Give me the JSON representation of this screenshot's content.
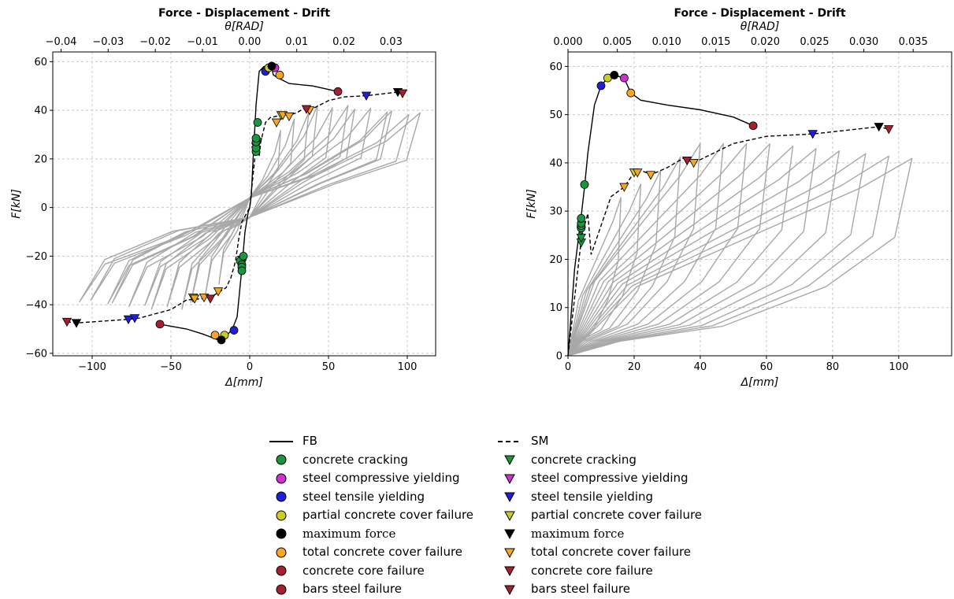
{
  "chart_data": [
    {
      "type": "line",
      "title": "Force - Displacement - Drift",
      "top_axis_label": "θ[RAD]",
      "xlabel": "Δ[mm]",
      "ylabel": "F[kN]",
      "xlim": [
        -125,
        118
      ],
      "ylim": [
        -61,
        64
      ],
      "top_axis_lim": [
        -0.04175,
        0.03946
      ],
      "xticks": [
        "−100",
        "−50",
        "0",
        "50",
        "100"
      ],
      "yticks": [
        "−60",
        "−40",
        "−20",
        "0",
        "20",
        "40",
        "60"
      ],
      "top_ticks": [
        "−0.04",
        "−0.03",
        "−0.02",
        "−0.01",
        "0.00",
        "0.01",
        "0.02",
        "0.03"
      ],
      "grid": true,
      "series": [
        {
          "name": "FB",
          "style": "solid",
          "color": "#000000",
          "x": [
            -57,
            -40,
            -30,
            -20,
            -15,
            -11,
            -8,
            -5,
            -3,
            -1,
            0,
            1,
            2,
            3,
            4,
            6,
            9,
            12,
            14,
            15,
            19,
            25,
            40,
            56
          ],
          "y": [
            -48,
            -50,
            -52,
            -54.5,
            -53,
            -50,
            -45,
            -25,
            -10,
            -2,
            0,
            5,
            18,
            30,
            42,
            56,
            58,
            58.2,
            57.5,
            54.5,
            53,
            51,
            50,
            47.7
          ]
        },
        {
          "name": "SM",
          "style": "dashed",
          "color": "#000000",
          "x": [
            -116,
            -110,
            -77,
            -70,
            -50,
            -40,
            -30,
            -25,
            -15,
            -12,
            -9,
            -7,
            -5,
            0,
            4,
            5,
            6,
            7,
            10,
            13,
            20,
            25,
            30,
            35,
            38,
            50,
            60,
            74,
            94,
            97
          ],
          "y": [
            -47,
            -47.5,
            -46,
            -45.5,
            -42,
            -38,
            -37.5,
            -37,
            -33,
            -29,
            -22,
            -13,
            -6,
            0,
            25,
            30,
            21,
            27,
            35,
            37,
            38,
            38,
            39,
            41,
            40,
            44,
            45.5,
            46,
            47.5,
            47
          ]
        }
      ],
      "markers_FB": [
        {
          "event": "concrete cracking",
          "x": [
            4,
            4,
            4,
            4,
            5,
            -6,
            -5,
            -5,
            -5,
            -4
          ],
          "y": [
            23,
            24.5,
            27,
            28.5,
            35,
            -22,
            -23.5,
            -24.5,
            -26,
            -20
          ]
        },
        {
          "event": "steel compressive yielding",
          "x": [
            16
          ],
          "y": [
            57.5
          ]
        },
        {
          "event": "steel tensile yielding",
          "x": [
            10,
            -10
          ],
          "y": [
            56,
            -50.5
          ]
        },
        {
          "event": "partial concrete cover failure",
          "x": [
            12,
            -16
          ],
          "y": [
            57.5,
            -52.5
          ]
        },
        {
          "event": "maximum force",
          "x": [
            14,
            -18
          ],
          "y": [
            58.2,
            -54.5
          ]
        },
        {
          "event": "total concrete cover failure",
          "x": [
            19,
            -22
          ],
          "y": [
            54.5,
            -52.5
          ]
        },
        {
          "event": "concrete core failure",
          "x": [
            56,
            -57
          ],
          "y": [
            47.7,
            -48
          ]
        },
        {
          "event": "bars steel failure",
          "x": [],
          "y": []
        }
      ],
      "markers_SM": [
        {
          "event": "concrete cracking",
          "x": [
            4,
            4,
            5,
            -5,
            -5
          ],
          "y": [
            23.5,
            25,
            27,
            -21.5,
            -23
          ]
        },
        {
          "event": "steel compressive yielding",
          "x": [],
          "y": []
        },
        {
          "event": "steel tensile yielding",
          "x": [
            74,
            -77,
            -73
          ],
          "y": [
            46,
            -46,
            -45.5
          ]
        },
        {
          "event": "partial concrete cover failure",
          "x": [
            20,
            -36
          ],
          "y": [
            38,
            -37
          ]
        },
        {
          "event": "maximum force",
          "x": [
            94,
            -110
          ],
          "y": [
            47.5,
            -47.5
          ]
        },
        {
          "event": "total concrete cover failure",
          "x": [
            17,
            21,
            25,
            38,
            -35,
            -29,
            -20
          ],
          "y": [
            35,
            38,
            37.5,
            40,
            -37.5,
            -37,
            -34.5
          ]
        },
        {
          "event": "concrete core failure",
          "x": [
            97,
            -116
          ],
          "y": [
            47,
            -47
          ]
        },
        {
          "event": "bars steel failure",
          "x": [
            36,
            -25
          ],
          "y": [
            40.5,
            -37.5
          ]
        }
      ]
    },
    {
      "type": "line",
      "title": "Force - Displacement - Drift",
      "top_axis_label": "θ[RAD]",
      "xlabel": "Δ[mm]",
      "ylabel": "F[kN]",
      "xlim": [
        0,
        116
      ],
      "ylim": [
        0,
        63
      ],
      "top_axis_lim": [
        0,
        0.0389
      ],
      "xticks": [
        "0",
        "20",
        "40",
        "60",
        "80",
        "100"
      ],
      "yticks": [
        "0",
        "10",
        "20",
        "30",
        "40",
        "50",
        "60"
      ],
      "top_ticks": [
        "0.000",
        "0.005",
        "0.010",
        "0.015",
        "0.020",
        "0.025",
        "0.030",
        "0.035"
      ],
      "grid": true,
      "series": [
        {
          "name": "FB",
          "style": "solid",
          "color": "#000000",
          "x": [
            0,
            2,
            4,
            5,
            6,
            8,
            10,
            12,
            14,
            15,
            17,
            19,
            22,
            30,
            40,
            50,
            56
          ],
          "y": [
            0,
            18,
            29,
            35,
            42,
            52,
            56,
            57.6,
            58.2,
            58,
            57.5,
            54.5,
            53,
            52,
            51,
            49.5,
            47.7
          ]
        },
        {
          "name": "SM",
          "style": "dashed",
          "color": "#000000",
          "x": [
            0,
            3,
            4,
            5,
            6,
            7,
            10,
            13,
            17,
            20,
            22,
            25,
            30,
            35,
            38,
            50,
            60,
            74,
            94,
            97
          ],
          "y": [
            0,
            18,
            24,
            27,
            29.5,
            21,
            27,
            33,
            35,
            38,
            38.5,
            37.5,
            39,
            41,
            40,
            44,
            45.5,
            46,
            47.5,
            47
          ]
        }
      ],
      "markers_FB": [
        {
          "event": "concrete cracking",
          "x": [
            4,
            4,
            4,
            4,
            5
          ],
          "y": [
            26.5,
            27,
            27.5,
            28.5,
            35.5
          ]
        },
        {
          "event": "steel compressive yielding",
          "x": [
            17
          ],
          "y": [
            57.6
          ]
        },
        {
          "event": "steel tensile yielding",
          "x": [
            10
          ],
          "y": [
            56
          ]
        },
        {
          "event": "partial concrete cover failure",
          "x": [
            12
          ],
          "y": [
            57.6
          ]
        },
        {
          "event": "maximum force",
          "x": [
            14
          ],
          "y": [
            58.2
          ]
        },
        {
          "event": "total concrete cover failure",
          "x": [
            19
          ],
          "y": [
            54.5
          ]
        },
        {
          "event": "concrete core failure",
          "x": [
            56
          ],
          "y": [
            47.7
          ]
        },
        {
          "event": "bars steel failure",
          "x": [],
          "y": []
        }
      ],
      "markers_SM": [
        {
          "event": "concrete cracking",
          "x": [
            4,
            4,
            4
          ],
          "y": [
            23.5,
            24.5,
            26
          ]
        },
        {
          "event": "steel compressive yielding",
          "x": [],
          "y": []
        },
        {
          "event": "steel tensile yielding",
          "x": [
            74
          ],
          "y": [
            46
          ]
        },
        {
          "event": "partial concrete cover failure",
          "x": [
            20
          ],
          "y": [
            38
          ]
        },
        {
          "event": "maximum force",
          "x": [
            94
          ],
          "y": [
            47.5
          ]
        },
        {
          "event": "total concrete cover failure",
          "x": [
            17,
            21,
            25,
            38
          ],
          "y": [
            35,
            38,
            37.5,
            40
          ]
        },
        {
          "event": "concrete core failure",
          "x": [
            97
          ],
          "y": [
            47
          ]
        },
        {
          "event": "bars steel failure",
          "x": [
            36
          ],
          "y": [
            40.5
          ]
        }
      ]
    }
  ],
  "legend": {
    "fb_title": "FB",
    "sm_title": "SM",
    "fb_items": [
      {
        "label": "concrete cracking",
        "color": "#1a9641"
      },
      {
        "label": "steel compressive yielding",
        "color": "#cc33cc"
      },
      {
        "label": "steel tensile yielding",
        "color": "#1f1fd6"
      },
      {
        "label": "partial concrete cover failure",
        "color": "#cccc22"
      },
      {
        "label": "maximum force",
        "color": "#000000",
        "serif": true
      },
      {
        "label": "total concrete cover failure",
        "color": "#f5a623"
      },
      {
        "label": "concrete core failure",
        "color": "#a32030"
      },
      {
        "label": "bars steel failure",
        "color": "#a32030"
      }
    ],
    "sm_items": [
      {
        "label": "concrete cracking",
        "color": "#1a9641"
      },
      {
        "label": "steel compressive yielding",
        "color": "#cc33cc"
      },
      {
        "label": "steel tensile yielding",
        "color": "#1f1fd6"
      },
      {
        "label": "partial concrete cover failure",
        "color": "#cccc22"
      },
      {
        "label": "maximum force",
        "color": "#000000",
        "serif": true
      },
      {
        "label": "total concrete cover failure",
        "color": "#f5a623"
      },
      {
        "label": "concrete core failure",
        "color": "#a32030"
      },
      {
        "label": "bars steel failure",
        "color": "#a32030"
      }
    ]
  },
  "colors": {
    "hysteresis": "#a8a8a8",
    "grid": "#c8c8c8"
  }
}
